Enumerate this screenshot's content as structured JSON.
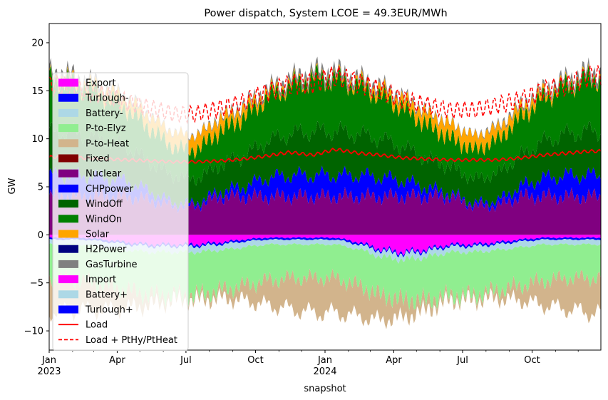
{
  "chart_data": {
    "type": "area",
    "title": "Power dispatch, System LCOE = 49.3EUR/MWh",
    "xlabel": "snapshot",
    "ylabel": "GW",
    "xlim": [
      "2023-01-01",
      "2024-12-31"
    ],
    "ylim": [
      -12,
      22
    ],
    "yticks": [
      -10,
      -5,
      0,
      5,
      10,
      15,
      20
    ],
    "xticks": [
      {
        "date": "2023-01-01",
        "label": "Jan",
        "sublabel": "2023"
      },
      {
        "date": "2023-04-01",
        "label": "Apr",
        "sublabel": ""
      },
      {
        "date": "2023-07-01",
        "label": "Jul",
        "sublabel": ""
      },
      {
        "date": "2023-10-01",
        "label": "Oct",
        "sublabel": ""
      },
      {
        "date": "2024-01-01",
        "label": "Jan",
        "sublabel": "2024"
      },
      {
        "date": "2024-04-01",
        "label": "Apr",
        "sublabel": ""
      },
      {
        "date": "2024-07-01",
        "label": "Jul",
        "sublabel": ""
      },
      {
        "date": "2024-10-01",
        "label": "Oct",
        "sublabel": ""
      }
    ],
    "grid": false,
    "legend_position": "center-left",
    "x": [
      "2023-01",
      "2023-02",
      "2023-03",
      "2023-04",
      "2023-05",
      "2023-06",
      "2023-07",
      "2023-08",
      "2023-09",
      "2023-10",
      "2023-11",
      "2023-12",
      "2024-01",
      "2024-02",
      "2024-03",
      "2024-04",
      "2024-05",
      "2024-06",
      "2024-07",
      "2024-08",
      "2024-09",
      "2024-10",
      "2024-11",
      "2024-12"
    ],
    "positive_series": [
      {
        "name": "Nuclear",
        "color": "#800080",
        "values": [
          4.0,
          4.0,
          4.0,
          4.0,
          3.6,
          3.0,
          3.0,
          4.0,
          4.0,
          4.0,
          4.0,
          4.0,
          4.0,
          4.0,
          4.0,
          4.0,
          4.0,
          4.0,
          3.0,
          3.0,
          4.0,
          4.0,
          4.0,
          4.0
        ]
      },
      {
        "name": "CHPpower",
        "color": "#0000ff",
        "values": [
          2.2,
          2.2,
          2.0,
          1.6,
          0.9,
          0.3,
          0.3,
          0.5,
          1.0,
          1.9,
          2.2,
          2.2,
          2.2,
          2.2,
          2.0,
          1.6,
          0.9,
          0.3,
          0.3,
          0.5,
          1.0,
          1.9,
          2.2,
          2.2
        ]
      },
      {
        "name": "WindOff",
        "color": "#006400",
        "values": [
          4.5,
          4.2,
          4.0,
          3.5,
          3.0,
          2.8,
          2.5,
          2.8,
          3.2,
          3.8,
          4.3,
          4.6,
          4.6,
          4.3,
          4.0,
          3.5,
          3.0,
          2.8,
          2.5,
          2.8,
          3.2,
          3.8,
          4.3,
          4.6
        ]
      },
      {
        "name": "WindOn",
        "color": "#008000",
        "values": [
          5.5,
          5.0,
          4.5,
          4.0,
          3.5,
          3.0,
          3.0,
          3.5,
          4.0,
          4.5,
          5.0,
          5.5,
          5.5,
          5.0,
          4.5,
          4.0,
          3.5,
          3.0,
          3.0,
          3.5,
          4.0,
          4.5,
          5.0,
          5.5
        ]
      },
      {
        "name": "Solar",
        "color": "#ffa500",
        "values": [
          0.2,
          0.4,
          0.7,
          1.0,
          1.3,
          1.5,
          1.5,
          1.3,
          1.0,
          0.6,
          0.3,
          0.2,
          0.2,
          0.4,
          0.7,
          1.0,
          1.3,
          1.5,
          1.5,
          1.3,
          1.0,
          0.6,
          0.3,
          0.2
        ]
      },
      {
        "name": "GasTurbine",
        "color": "#808080",
        "values": [
          0.6,
          0.5,
          0.4,
          0.3,
          0.2,
          0.1,
          0.1,
          0.2,
          0.3,
          0.4,
          0.5,
          0.6,
          0.6,
          0.5,
          0.4,
          0.3,
          0.2,
          0.1,
          0.1,
          0.2,
          0.3,
          0.4,
          0.5,
          0.6
        ]
      }
    ],
    "negative_series": [
      {
        "name": "Export",
        "color": "#ff00ff",
        "values": [
          -0.3,
          -0.3,
          -0.5,
          -0.8,
          -1.0,
          -1.0,
          -1.0,
          -0.8,
          -0.5,
          -0.3,
          -0.3,
          -0.3,
          -0.3,
          -0.8,
          -1.5,
          -1.8,
          -1.5,
          -1.0,
          -1.0,
          -0.8,
          -0.5,
          -0.3,
          -0.3,
          -0.3
        ]
      },
      {
        "name": "Turlough-",
        "color": "#0000ff",
        "values": [
          -0.2,
          -0.2,
          -0.2,
          -0.2,
          -0.2,
          -0.2,
          -0.2,
          -0.2,
          -0.2,
          -0.2,
          -0.2,
          -0.2,
          -0.2,
          -0.2,
          -0.2,
          -0.2,
          -0.2,
          -0.2,
          -0.2,
          -0.2,
          -0.2,
          -0.2,
          -0.2,
          -0.2
        ]
      },
      {
        "name": "Battery-",
        "color": "#add8e6",
        "values": [
          -0.5,
          -0.5,
          -0.6,
          -0.6,
          -0.6,
          -0.6,
          -0.6,
          -0.6,
          -0.6,
          -0.5,
          -0.5,
          -0.5,
          -0.5,
          -0.5,
          -0.6,
          -0.6,
          -0.6,
          -0.6,
          -0.6,
          -0.6,
          -0.6,
          -0.5,
          -0.5,
          -0.5
        ]
      },
      {
        "name": "P-to-Elyz",
        "color": "#90ee90",
        "values": [
          -3.5,
          -3.8,
          -4.0,
          -4.2,
          -4.5,
          -4.5,
          -4.5,
          -4.2,
          -4.0,
          -3.8,
          -3.5,
          -3.5,
          -3.5,
          -3.8,
          -4.0,
          -4.2,
          -4.5,
          -4.5,
          -4.5,
          -4.2,
          -4.0,
          -3.8,
          -3.5,
          -3.5
        ]
      },
      {
        "name": "P-to-Heat",
        "color": "#d2b48c",
        "values": [
          -3.5,
          -3.0,
          -2.5,
          -1.8,
          -1.0,
          -0.5,
          -0.5,
          -0.8,
          -1.5,
          -2.5,
          -3.2,
          -3.6,
          -3.6,
          -3.2,
          -2.6,
          -1.8,
          -1.0,
          -0.5,
          -0.5,
          -0.8,
          -1.5,
          -2.5,
          -3.2,
          -3.6
        ]
      }
    ],
    "lines": [
      {
        "name": "Load",
        "color": "#ff0000",
        "style": "solid",
        "values": [
          8.1,
          8.0,
          7.9,
          7.8,
          7.7,
          7.6,
          7.6,
          7.7,
          7.9,
          8.2,
          8.6,
          8.3,
          8.9,
          8.5,
          8.3,
          8.0,
          7.9,
          7.8,
          7.8,
          7.8,
          8.0,
          8.3,
          8.5,
          8.7
        ]
      },
      {
        "name": "Load + PtHy/PtHeat",
        "color": "#ff0000",
        "style": "dashed",
        "values": [
          15.5,
          15.0,
          14.5,
          13.8,
          13.2,
          12.6,
          12.6,
          13.2,
          13.8,
          14.8,
          15.6,
          15.8,
          16.5,
          15.8,
          15.0,
          14.0,
          13.5,
          13.0,
          13.0,
          13.5,
          14.0,
          15.0,
          15.5,
          16.5
        ]
      }
    ],
    "legend": [
      {
        "name": "Export",
        "color": "#ff00ff",
        "kind": "patch"
      },
      {
        "name": "Turlough-",
        "color": "#0000ff",
        "kind": "patch"
      },
      {
        "name": "Battery-",
        "color": "#add8e6",
        "kind": "patch"
      },
      {
        "name": "P-to-Elyz",
        "color": "#90ee90",
        "kind": "patch"
      },
      {
        "name": "P-to-Heat",
        "color": "#d2b48c",
        "kind": "patch"
      },
      {
        "name": "Fixed",
        "color": "#800000",
        "kind": "patch"
      },
      {
        "name": "Nuclear",
        "color": "#800080",
        "kind": "patch"
      },
      {
        "name": "CHPpower",
        "color": "#0000ff",
        "kind": "patch"
      },
      {
        "name": "WindOff",
        "color": "#006400",
        "kind": "patch"
      },
      {
        "name": "WindOn",
        "color": "#008000",
        "kind": "patch"
      },
      {
        "name": "Solar",
        "color": "#ffa500",
        "kind": "patch"
      },
      {
        "name": "H2Power",
        "color": "#000080",
        "kind": "patch"
      },
      {
        "name": "GasTurbine",
        "color": "#808080",
        "kind": "patch"
      },
      {
        "name": "Import",
        "color": "#ff00ff",
        "kind": "patch"
      },
      {
        "name": "Battery+",
        "color": "#add8e6",
        "kind": "patch"
      },
      {
        "name": "Turlough+",
        "color": "#0000ff",
        "kind": "patch"
      },
      {
        "name": "Load",
        "color": "#ff0000",
        "kind": "line-solid"
      },
      {
        "name": "Load + PtHy/PtHeat",
        "color": "#ff0000",
        "kind": "line-dashed"
      }
    ]
  }
}
